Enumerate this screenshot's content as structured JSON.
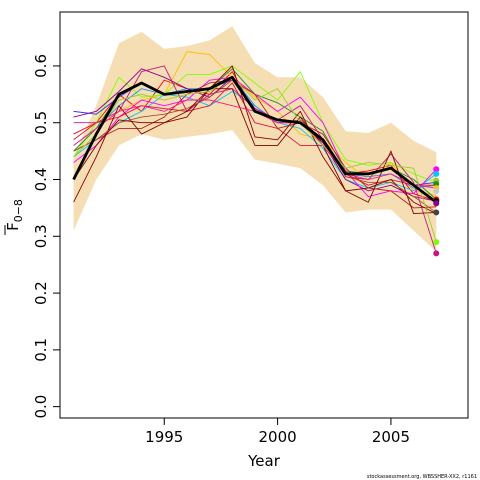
{
  "chart_data": {
    "type": "line",
    "xlabel": "Year",
    "ylabel_main": "F",
    "ylabel_sub": "0−8",
    "footnote": "stockassessment.org, WBSSHER-XX2, r1161",
    "xlim": [
      1990.4,
      2008.4
    ],
    "ylim": [
      -0.02,
      0.695
    ],
    "x_ticks": [
      1995,
      2000,
      2005
    ],
    "y_ticks": [
      0.0,
      0.1,
      0.2,
      0.3,
      0.4,
      0.5,
      0.6
    ],
    "y_tick_labels": [
      "0.0",
      "0.1",
      "0.2",
      "0.3",
      "0.4",
      "0.5",
      "0.6"
    ],
    "x": [
      1991,
      1992,
      1993,
      1994,
      1995,
      1996,
      1997,
      1998,
      1999,
      2000,
      2001,
      2002,
      2003,
      2004,
      2005,
      2006,
      2007
    ],
    "confidence_band": {
      "color": "#f5deb3",
      "upper": [
        0.44,
        0.53,
        0.64,
        0.66,
        0.63,
        0.635,
        0.645,
        0.67,
        0.605,
        0.58,
        0.58,
        0.545,
        0.485,
        0.482,
        0.5,
        0.468,
        0.448
      ],
      "lower": [
        0.31,
        0.4,
        0.46,
        0.48,
        0.47,
        0.475,
        0.48,
        0.487,
        0.435,
        0.428,
        0.42,
        0.39,
        0.342,
        0.347,
        0.347,
        0.31,
        0.273
      ]
    },
    "main_series": {
      "color": "#000000",
      "values": [
        0.4,
        0.48,
        0.55,
        0.57,
        0.55,
        0.555,
        0.56,
        0.58,
        0.52,
        0.505,
        0.5,
        0.47,
        0.41,
        0.41,
        0.42,
        0.39,
        0.36
      ]
    },
    "retro_series": [
      {
        "color": "#ff0000",
        "values": [
          0.48,
          0.5,
          0.55,
          0.52,
          0.575,
          0.56,
          0.55,
          0.59,
          0.52,
          0.5,
          0.5,
          0.465,
          0.41,
          0.415,
          0.425,
          0.375,
          0.362
        ]
      },
      {
        "color": "#ffbf00",
        "values": [
          0.46,
          0.49,
          0.52,
          0.54,
          0.55,
          0.625,
          0.62,
          0.58,
          0.545,
          0.52,
          0.48,
          0.47,
          0.43,
          0.4,
          0.43,
          0.38,
          0.372
        ]
      },
      {
        "color": "#80ff00",
        "values": [
          0.44,
          0.5,
          0.58,
          0.545,
          0.55,
          0.585,
          0.585,
          0.6,
          0.57,
          0.54,
          0.59,
          0.5,
          0.435,
          0.425,
          0.43,
          0.41,
          0.395
        ]
      },
      {
        "color": "#228b22",
        "values": [
          0.45,
          0.49,
          0.55,
          0.57,
          0.55,
          0.555,
          0.56,
          0.595,
          0.55,
          0.535,
          0.51,
          0.485,
          0.415,
          0.41,
          0.42,
          0.4,
          0.365
        ]
      },
      {
        "color": "#00c8ff",
        "values": [
          0.44,
          0.47,
          0.5,
          0.52,
          0.55,
          0.545,
          0.53,
          0.555,
          0.53,
          0.5,
          0.49,
          0.455,
          0.4,
          0.385,
          0.395,
          0.38,
          0.41
        ]
      },
      {
        "color": "#1e90ff",
        "values": [
          0.46,
          0.49,
          0.53,
          0.56,
          0.55,
          0.56,
          0.56,
          0.58,
          0.53,
          0.5,
          0.5,
          0.47,
          0.41,
          0.405,
          0.41,
          0.385,
          0.39
        ]
      },
      {
        "color": "#3030ff",
        "values": [
          0.52,
          0.515,
          0.545,
          0.57,
          0.55,
          0.555,
          0.56,
          0.575,
          0.52,
          0.505,
          0.5,
          0.47,
          0.41,
          0.41,
          0.42,
          0.39,
          0.395
        ]
      },
      {
        "color": "#8b008b",
        "values": [
          0.51,
          0.52,
          0.555,
          0.595,
          0.58,
          0.56,
          0.545,
          0.58,
          0.525,
          0.505,
          0.5,
          0.465,
          0.4,
          0.38,
          0.39,
          0.37,
          0.362
        ]
      },
      {
        "color": "#c71585",
        "values": [
          0.5,
          0.5,
          0.52,
          0.59,
          0.6,
          0.52,
          0.55,
          0.56,
          0.525,
          0.505,
          0.53,
          0.47,
          0.405,
          0.4,
          0.445,
          0.395,
          0.27
        ]
      },
      {
        "color": "#ff00ff",
        "values": [
          0.43,
          0.46,
          0.51,
          0.54,
          0.53,
          0.54,
          0.575,
          0.58,
          0.55,
          0.52,
          0.545,
          0.5,
          0.415,
          0.37,
          0.38,
          0.375,
          0.418
        ]
      },
      {
        "color": "#dc143c",
        "values": [
          0.47,
          0.5,
          0.51,
          0.53,
          0.525,
          0.52,
          0.53,
          0.57,
          0.5,
          0.49,
          0.46,
          0.46,
          0.41,
          0.39,
          0.4,
          0.39,
          0.39
        ]
      },
      {
        "color": "#b22222",
        "values": [
          0.45,
          0.47,
          0.49,
          0.49,
          0.51,
          0.55,
          0.57,
          0.575,
          0.55,
          0.49,
          0.5,
          0.48,
          0.42,
          0.385,
          0.38,
          0.35,
          0.352
        ]
      },
      {
        "color": "#8b0000",
        "values": [
          0.36,
          0.44,
          0.53,
          0.48,
          0.5,
          0.51,
          0.56,
          0.6,
          0.475,
          0.47,
          0.52,
          0.44,
          0.38,
          0.385,
          0.4,
          0.36,
          0.34
        ]
      },
      {
        "color": "#a0522d",
        "values": [
          0.45,
          0.47,
          0.5,
          0.51,
          0.515,
          0.525,
          0.545,
          0.575,
          0.52,
          0.5,
          0.505,
          0.47,
          0.405,
          0.395,
          0.395,
          0.37,
          0.342
        ]
      },
      {
        "color": "#800000",
        "values": [
          0.4,
          0.46,
          0.505,
          0.5,
          0.5,
          0.52,
          0.56,
          0.56,
          0.46,
          0.46,
          0.51,
          0.46,
          0.38,
          0.36,
          0.45,
          0.34,
          0.342
        ]
      },
      {
        "color": "#ff1493",
        "values": [
          0.46,
          0.49,
          0.52,
          0.53,
          0.52,
          0.54,
          0.54,
          0.53,
          0.52,
          0.5,
          0.5,
          0.46,
          0.41,
          0.4,
          0.41,
          0.39,
          0.385
        ]
      },
      {
        "color": "#9acd32",
        "values": [
          0.44,
          0.48,
          0.54,
          0.55,
          0.54,
          0.55,
          0.555,
          0.58,
          0.54,
          0.56,
          0.5,
          0.46,
          0.42,
          0.43,
          0.425,
          0.42,
          0.29
        ]
      }
    ],
    "end_points": [
      {
        "color": "#ff00ff",
        "value": 0.418
      },
      {
        "color": "#00c8ff",
        "value": 0.41
      },
      {
        "color": "#9acd32",
        "value": 0.398
      },
      {
        "color": "#228b22",
        "value": 0.392
      },
      {
        "color": "#ffbf00",
        "value": 0.385
      },
      {
        "color": "#c8c8c8",
        "value": 0.38
      },
      {
        "color": "#ff0000",
        "value": 0.365
      },
      {
        "color": "#000000",
        "value": 0.362
      },
      {
        "color": "#8b008b",
        "value": 0.358
      },
      {
        "color": "#444444",
        "value": 0.342
      },
      {
        "color": "#80ff00",
        "value": 0.29
      },
      {
        "color": "#c71585",
        "value": 0.27
      }
    ]
  }
}
